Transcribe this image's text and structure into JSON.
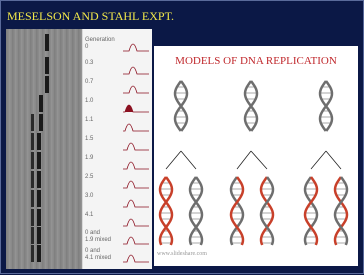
{
  "header": {
    "title": "MESELSON AND STAHL EXPT."
  },
  "gel": {
    "labels": [
      "Generation\n0",
      "0.3",
      "0.7",
      "1.0",
      "1.1",
      "1.5",
      "1.9",
      "2.5",
      "3.0",
      "4.1",
      "0 and\n1.9 mixed",
      "0 and\n4.1 mixed"
    ]
  },
  "models": {
    "title": "MODELS OF DNA REPLICATION"
  },
  "footer": {
    "credit": "www.slideshare.com"
  }
}
